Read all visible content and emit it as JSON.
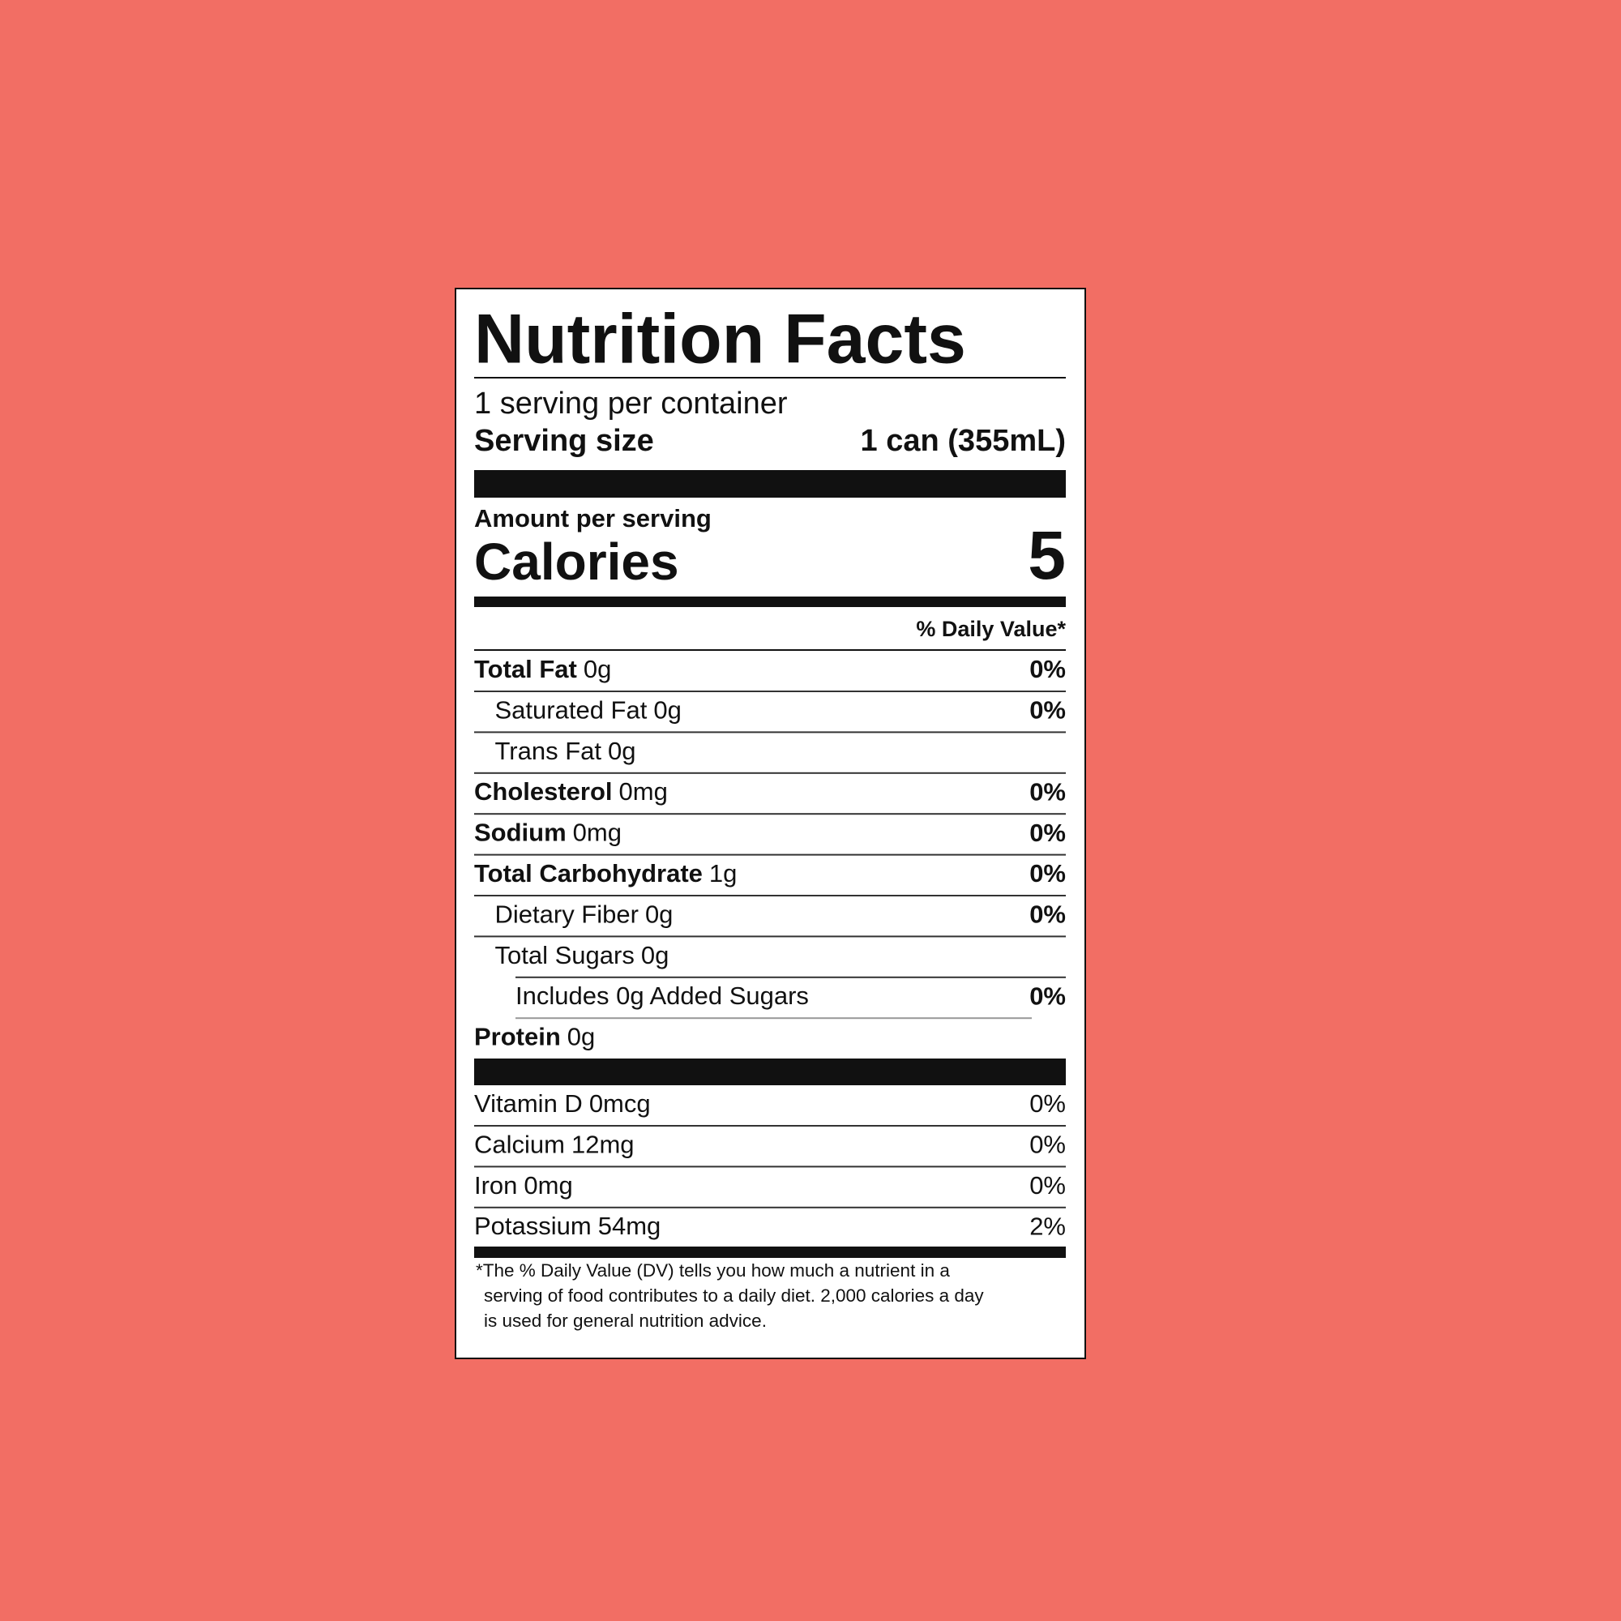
{
  "label": {
    "title": "Nutrition Facts",
    "servings": "1 serving per container",
    "serving_size_label": "Serving size",
    "serving_size": "1 can (355mL)",
    "amount_per_serving": "Amount per serving",
    "calories_label": "Calories",
    "calories": 5,
    "daily_value_header": "% Daily Value*",
    "nutrients": [
      {
        "name": "Total Fat",
        "amount": "0g",
        "dv": "0%"
      },
      {
        "name": "Saturated Fat",
        "amount": "0g",
        "dv": "0%"
      },
      {
        "name": "Trans Fat",
        "amount": "0g"
      },
      {
        "name": "Cholesterol",
        "amount": "0mg",
        "dv": "0%"
      },
      {
        "name": "Sodium",
        "amount": "0mg",
        "dv": "0%"
      },
      {
        "name": "Total Carbohydrate",
        "amount": "1g",
        "dv": "0%"
      },
      {
        "name": "Dietary Fiber",
        "amount": "0g",
        "dv": "0%"
      },
      {
        "name": "Total Sugars",
        "amount": "0g"
      },
      {
        "name": "Includes 0g Added Sugars",
        "dv": "0%"
      },
      {
        "name": "Protein",
        "amount": "0g"
      }
    ],
    "vitamins": [
      {
        "name": "Vitamin D",
        "amount": "0mcg",
        "dv": "0%"
      },
      {
        "name": "Calcium",
        "amount": "12mg",
        "dv": "0%"
      },
      {
        "name": "Iron",
        "amount": "0mg",
        "dv": "0%"
      },
      {
        "name": "Potassium",
        "amount": "54mg",
        "dv": "2%"
      }
    ],
    "footnote": [
      "*The % Daily Value (DV) tells you how much a nutrient in a",
      "serving of food contributes to a daily diet. 2,000 calories a day",
      "is used for general nutrition advice."
    ]
  }
}
